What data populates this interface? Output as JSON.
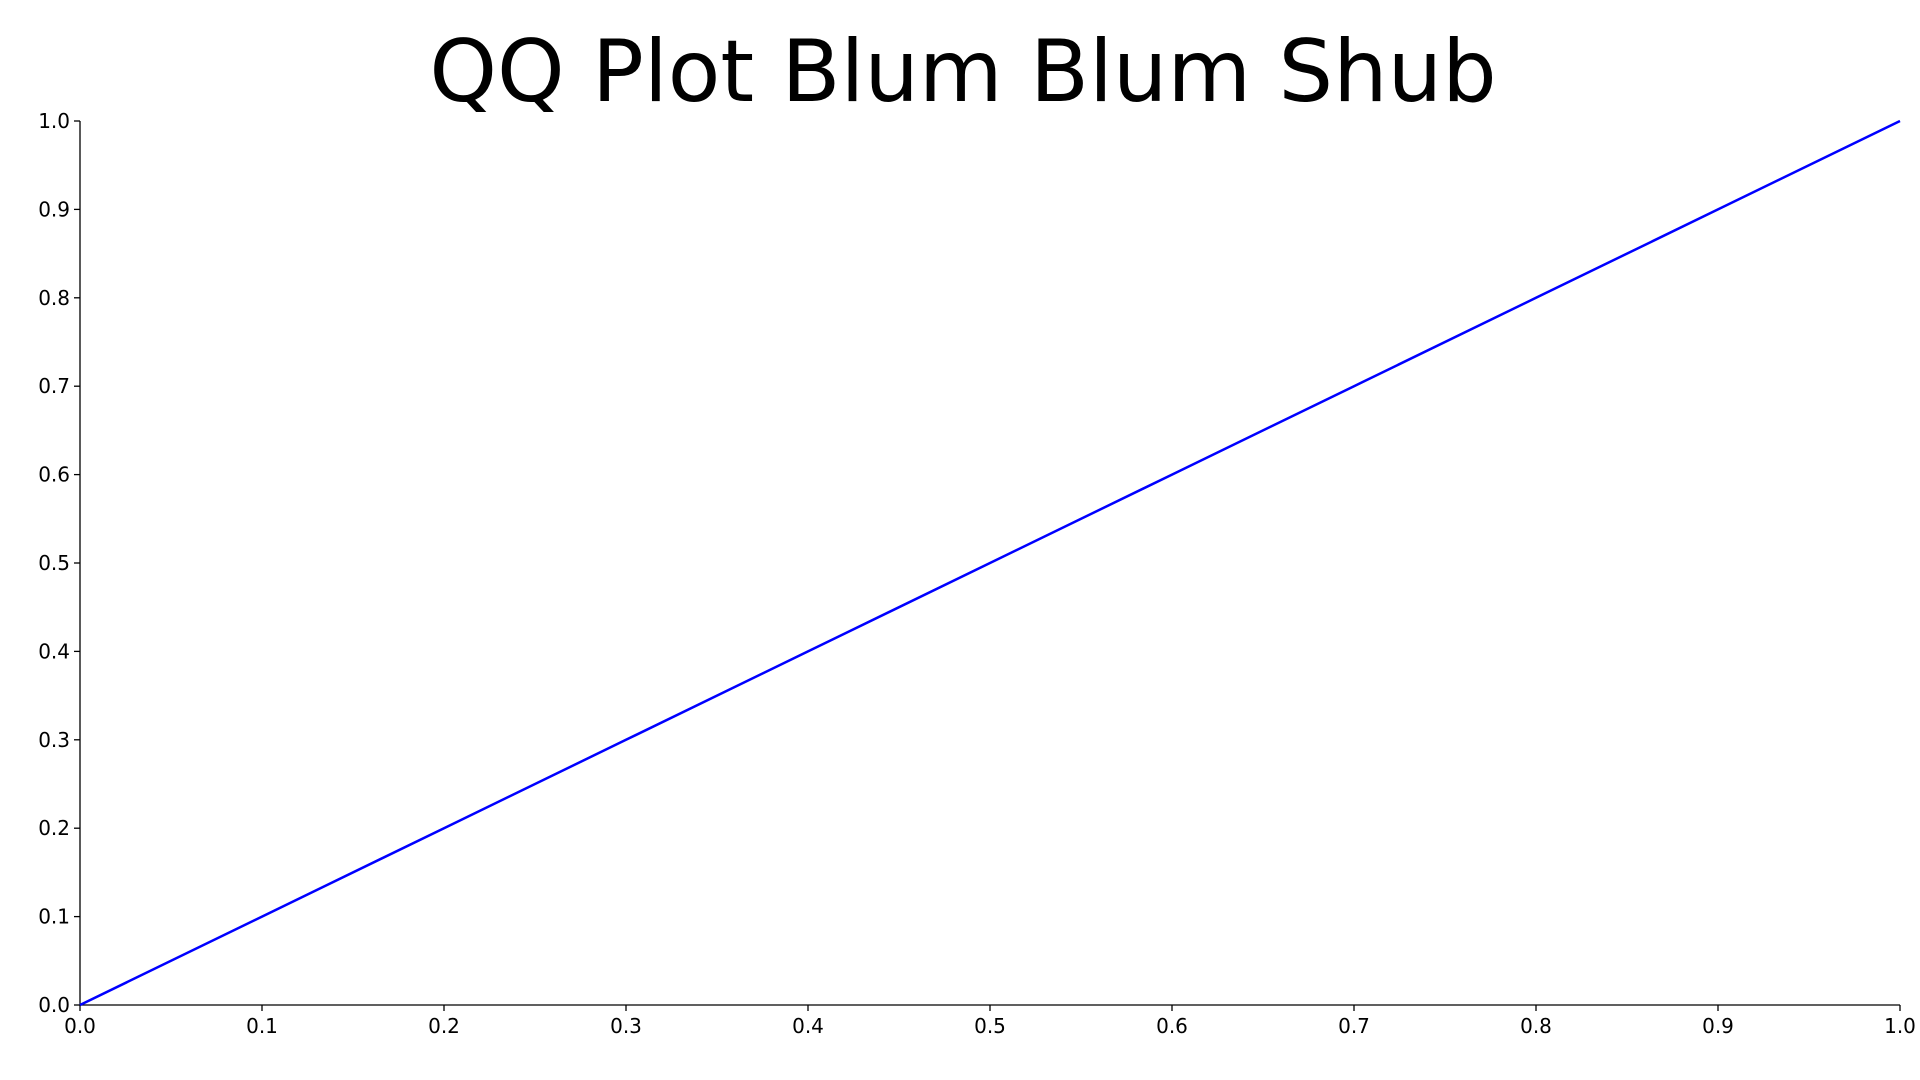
{
  "chart_data": {
    "type": "line",
    "title": "QQ Plot Blum Blum Shub",
    "xlabel": "",
    "ylabel": "",
    "xlim": [
      0.0,
      1.0
    ],
    "ylim": [
      0.0,
      1.0
    ],
    "xticks": [
      "0.0",
      "0.1",
      "0.2",
      "0.3",
      "0.4",
      "0.5",
      "0.6",
      "0.7",
      "0.8",
      "0.9",
      "1.0"
    ],
    "yticks": [
      "0.0",
      "0.1",
      "0.2",
      "0.3",
      "0.4",
      "0.5",
      "0.6",
      "0.7",
      "0.8",
      "0.9",
      "1.0"
    ],
    "grid": false,
    "series": [
      {
        "color": "#0000ff",
        "x": [
          0.0,
          0.1,
          0.2,
          0.3,
          0.4,
          0.5,
          0.6,
          0.7,
          0.8,
          0.9,
          1.0
        ],
        "y": [
          0.0,
          0.1,
          0.2,
          0.3,
          0.4,
          0.5,
          0.6,
          0.7,
          0.8,
          0.9,
          1.0
        ]
      }
    ],
    "axis_color": "#000000"
  }
}
